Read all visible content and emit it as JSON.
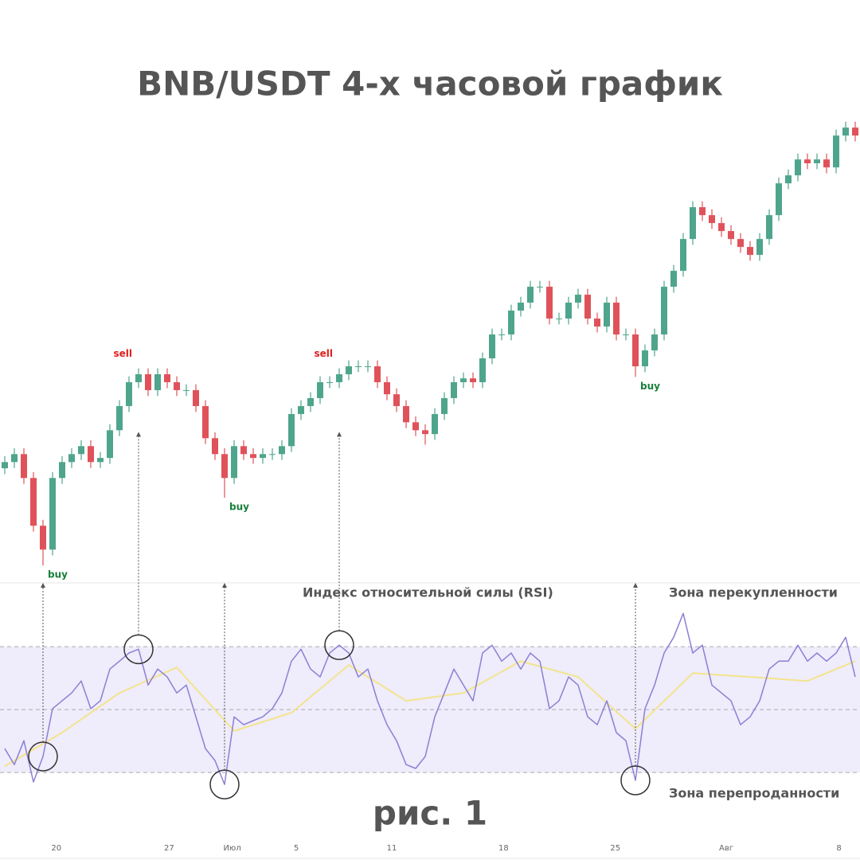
{
  "chart_data": [
    {
      "type": "candlestick",
      "title": "BNB/USDT 4-х часовой график",
      "open": [
        283.0,
        285.1,
        287.8,
        279.7,
        263.5,
        255.4,
        279.7,
        285.1,
        287.8,
        290.5,
        285.1,
        286.5,
        295.9,
        304.1,
        312.2,
        314.9,
        309.5,
        314.9,
        312.2,
        309.5,
        309.5,
        304.1,
        293.2,
        287.8,
        279.7,
        290.5,
        287.8,
        286.5,
        287.8,
        287.8,
        290.5,
        301.4,
        304.1,
        306.8,
        312.2,
        312.2,
        314.9,
        317.6,
        317.6,
        317.6,
        312.2,
        308.1,
        304.1,
        298.6,
        295.9,
        294.6,
        301.4,
        306.8,
        312.2,
        313.5,
        312.2,
        320.3,
        328.4,
        328.4,
        336.5,
        339.2,
        344.6,
        344.6,
        333.8,
        333.8,
        339.2,
        341.9,
        333.8,
        331.1,
        339.2,
        328.4,
        328.4,
        317.6,
        323.0,
        328.4,
        344.6,
        350.0,
        360.8,
        371.6,
        368.9,
        366.2,
        363.5,
        360.8,
        358.1,
        355.4,
        360.8,
        368.9,
        379.7,
        382.4,
        387.8,
        386.5,
        387.8,
        385.1,
        395.9,
        398.6
      ],
      "high": [
        287.1,
        289.8,
        289.8,
        281.7,
        265.5,
        281.7,
        287.1,
        289.8,
        292.5,
        292.5,
        288.5,
        297.9,
        306.1,
        314.2,
        316.9,
        316.9,
        316.9,
        316.9,
        314.2,
        311.5,
        311.5,
        306.1,
        295.2,
        289.8,
        292.5,
        292.5,
        289.8,
        289.8,
        289.8,
        292.5,
        303.4,
        306.1,
        308.8,
        314.2,
        314.2,
        316.9,
        319.6,
        319.6,
        319.6,
        319.6,
        314.2,
        310.1,
        306.1,
        300.6,
        297.9,
        303.4,
        308.8,
        314.2,
        315.5,
        315.5,
        322.3,
        330.4,
        330.4,
        338.5,
        341.2,
        346.6,
        346.6,
        346.6,
        335.8,
        341.2,
        343.9,
        343.9,
        335.8,
        341.2,
        341.2,
        330.4,
        330.4,
        325.0,
        330.4,
        346.6,
        352.0,
        362.8,
        373.6,
        373.6,
        370.9,
        368.2,
        365.5,
        362.8,
        360.1,
        362.8,
        370.9,
        381.7,
        384.4,
        389.8,
        389.8,
        389.8,
        389.8,
        397.9,
        400.6,
        400.6
      ],
      "low": [
        281.0,
        283.1,
        277.7,
        261.5,
        250.0,
        253.4,
        277.7,
        283.1,
        285.8,
        283.1,
        283.1,
        284.5,
        293.9,
        302.1,
        310.2,
        307.5,
        307.5,
        310.2,
        307.5,
        307.5,
        302.1,
        291.2,
        285.8,
        273.0,
        277.7,
        285.8,
        284.5,
        284.5,
        285.8,
        285.8,
        288.5,
        299.4,
        302.1,
        304.8,
        310.2,
        310.2,
        312.9,
        315.6,
        315.6,
        310.2,
        306.1,
        302.1,
        296.6,
        293.9,
        291.0,
        292.6,
        299.4,
        304.8,
        310.2,
        310.2,
        310.2,
        318.3,
        326.4,
        326.4,
        334.5,
        337.2,
        342.6,
        331.8,
        331.8,
        331.8,
        337.2,
        331.8,
        329.1,
        329.1,
        326.4,
        326.4,
        314.0,
        315.6,
        321.0,
        326.4,
        342.6,
        348.0,
        358.8,
        366.9,
        364.2,
        361.5,
        358.8,
        356.1,
        353.4,
        353.4,
        358.8,
        366.9,
        377.7,
        380.4,
        384.5,
        384.5,
        383.1,
        383.1,
        393.9,
        393.9
      ],
      "close": [
        285.1,
        287.8,
        279.7,
        263.5,
        255.4,
        279.7,
        285.1,
        287.8,
        290.5,
        285.1,
        286.5,
        295.9,
        304.1,
        312.2,
        314.9,
        309.5,
        314.9,
        312.2,
        309.5,
        309.5,
        304.1,
        293.2,
        287.8,
        279.7,
        290.5,
        287.8,
        286.5,
        287.8,
        287.8,
        290.5,
        301.4,
        304.1,
        306.8,
        312.2,
        312.2,
        314.9,
        317.6,
        317.6,
        317.6,
        312.2,
        308.1,
        304.1,
        298.6,
        295.9,
        294.6,
        301.4,
        306.8,
        312.2,
        313.5,
        312.2,
        320.3,
        328.4,
        328.4,
        336.5,
        339.2,
        344.6,
        344.6,
        333.8,
        333.8,
        339.2,
        341.9,
        333.8,
        331.1,
        339.2,
        328.4,
        328.4,
        317.6,
        323.0,
        328.4,
        344.6,
        350.0,
        360.8,
        371.6,
        368.9,
        366.2,
        363.5,
        360.8,
        358.1,
        355.4,
        360.8,
        368.9,
        379.7,
        382.4,
        387.8,
        386.5,
        387.8,
        385.1,
        395.9,
        398.6,
        395.9
      ],
      "up_color": "#4ea58c",
      "down_color": "#e0525a",
      "xlim": [
        -0.5,
        89.5
      ],
      "ylim": [
        244.1,
        441.9
      ],
      "signals": [
        {
          "label": "buy",
          "index": 4,
          "color": "#17803a"
        },
        {
          "label": "sell",
          "index": 14,
          "color": "#e01e1e"
        },
        {
          "label": "buy",
          "index": 23,
          "color": "#17803a"
        },
        {
          "label": "sell",
          "index": 35,
          "color": "#e01e1e"
        },
        {
          "label": "buy",
          "index": 66,
          "color": "#17803a"
        }
      ]
    },
    {
      "type": "line",
      "title": "Индекс относительной силы (RSI)",
      "series": [
        {
          "color": "#8a80d4",
          "values": [
            37.6,
            32.5,
            40.1,
            27.0,
            35.1,
            50.3,
            52.8,
            55.3,
            59.1,
            50.3,
            52.8,
            62.9,
            65.4,
            68.0,
            69.2,
            57.8,
            62.9,
            60.4,
            55.3,
            57.8,
            47.7,
            37.6,
            33.8,
            26.2,
            47.7,
            45.2,
            46.5,
            47.7,
            50.3,
            55.3,
            65.4,
            69.2,
            62.9,
            60.4,
            68.0,
            70.5,
            68.0,
            60.4,
            62.9,
            52.8,
            45.2,
            40.1,
            32.5,
            31.3,
            35.1,
            47.7,
            55.3,
            62.9,
            57.8,
            52.8,
            68.0,
            70.5,
            65.4,
            68.0,
            62.9,
            68.0,
            65.4,
            50.3,
            52.8,
            60.4,
            57.8,
            47.7,
            45.2,
            52.8,
            42.7,
            40.1,
            27.5,
            50.3,
            57.8,
            68.0,
            73.0,
            80.6,
            68.0,
            70.5,
            57.8,
            55.3,
            52.8,
            45.2,
            47.7,
            52.8,
            62.9,
            65.4,
            65.4,
            70.5,
            65.4,
            68.0,
            65.4,
            68.0,
            73.0,
            60.4
          ]
        },
        {
          "color": "#f3e48e",
          "x": [
            0,
            6,
            12,
            18,
            24,
            30,
            36,
            42,
            48,
            54,
            60,
            66,
            72,
            78,
            84,
            89
          ],
          "values": [
            32.0,
            42.7,
            55.3,
            63.4,
            43.2,
            49.0,
            64.2,
            52.8,
            55.3,
            65.4,
            60.4,
            43.9,
            61.6,
            60.4,
            59.1,
            65.4
          ]
        }
      ],
      "levels": [
        30,
        50,
        70
      ],
      "band_color": "#efecfb",
      "xlim": [
        -0.5,
        89.5
      ],
      "ylim": [
        12.3,
        90.3
      ],
      "xticks": [
        {
          "value": 5.4,
          "label": "20"
        },
        {
          "value": 17.2,
          "label": "27"
        },
        {
          "value": 23.8,
          "label": "Июл"
        },
        {
          "value": 30.5,
          "label": "5"
        },
        {
          "value": 40.5,
          "label": "11"
        },
        {
          "value": 52.2,
          "label": "18"
        },
        {
          "value": 63.9,
          "label": "25"
        },
        {
          "value": 75.5,
          "label": "Авг"
        },
        {
          "value": 87.3,
          "label": "8"
        }
      ],
      "overbought_label": "Зона перекупленности",
      "oversold_label": "Зона перепроданности"
    }
  ],
  "caption": "рис. 1"
}
